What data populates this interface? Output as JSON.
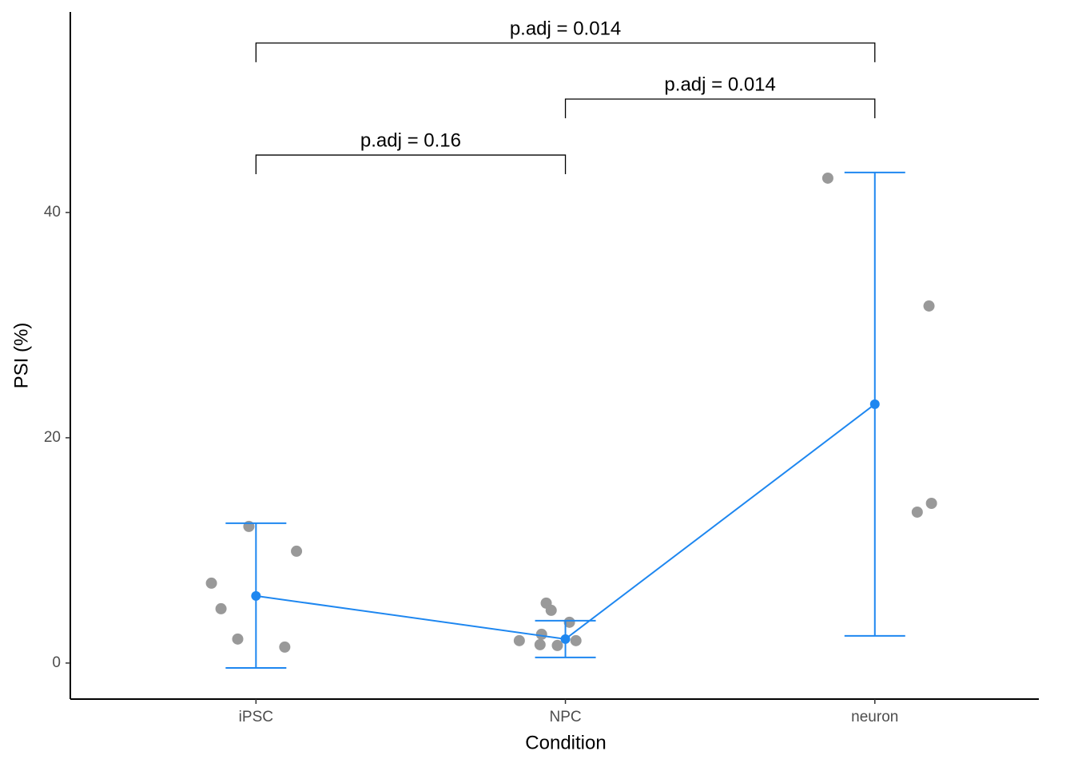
{
  "chart_data": {
    "type": "scatter",
    "xlabel": "Condition",
    "ylabel": "PSI (%)",
    "xlim": [
      0.4,
      3.53
    ],
    "ylim": [
      -3.2,
      57.8
    ],
    "xticks": [
      {
        "value": 1,
        "label": "iPSC"
      },
      {
        "value": 2,
        "label": "NPC"
      },
      {
        "value": 3,
        "label": "neuron"
      }
    ],
    "yticks": [
      0,
      20,
      40
    ],
    "points": {
      "color": "#999999",
      "x": [
        0.977,
        1.131,
        0.856,
        0.887,
        0.941,
        1.093,
        1.938,
        1.954,
        2.013,
        1.923,
        1.851,
        2.034,
        1.918,
        1.974,
        2.848,
        3.175,
        3.183,
        3.137
      ],
      "values": [
        12.13,
        9.93,
        7.09,
        4.82,
        2.13,
        1.42,
        5.32,
        4.68,
        3.62,
        2.55,
        1.99,
        1.99,
        1.63,
        1.56,
        43.05,
        31.7,
        14.18,
        13.4
      ]
    },
    "summary": {
      "color": "#1e87f0",
      "x": [
        1,
        2,
        3
      ],
      "values": [
        5.96,
        2.13,
        22.98
      ],
      "ymin": [
        -0.43,
        0.5,
        2.41
      ],
      "ymax": [
        12.41,
        3.76,
        43.55
      ]
    },
    "brackets": [
      {
        "x1": 1,
        "x2": 2,
        "y": 45.1,
        "label": "p.adj = 0.16"
      },
      {
        "x1": 2,
        "x2": 3,
        "y": 50.07,
        "label": "p.adj = 0.014"
      },
      {
        "x1": 1,
        "x2": 3,
        "y": 55.04,
        "label": "p.adj = 0.014"
      }
    ]
  }
}
